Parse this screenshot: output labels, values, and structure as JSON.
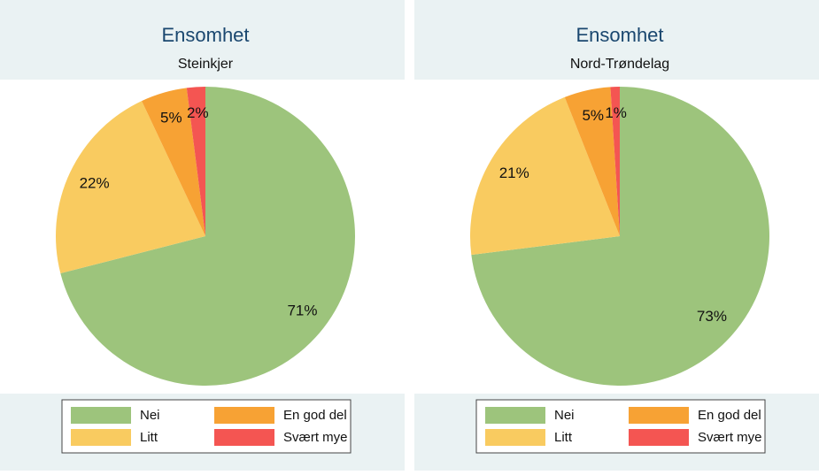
{
  "chart_data": [
    {
      "type": "pie",
      "title": "Ensomhet",
      "subtitle": "Steinkjer",
      "categories": [
        "Nei",
        "Litt",
        "En god del",
        "Svært mye"
      ],
      "values": [
        71,
        22,
        5,
        2
      ],
      "value_labels": [
        "71%",
        "22%",
        "5%",
        "2%"
      ],
      "colors": [
        "#9dc47c",
        "#f9cb60",
        "#f7a234",
        "#f45552"
      ]
    },
    {
      "type": "pie",
      "title": "Ensomhet",
      "subtitle": "Nord-Trøndelag",
      "categories": [
        "Nei",
        "Litt",
        "En god del",
        "Svært mye"
      ],
      "values": [
        73,
        21,
        5,
        1
      ],
      "value_labels": [
        "73%",
        "21%",
        "5%",
        "1%"
      ],
      "colors": [
        "#9dc47c",
        "#f9cb60",
        "#f7a234",
        "#f45552"
      ]
    }
  ]
}
